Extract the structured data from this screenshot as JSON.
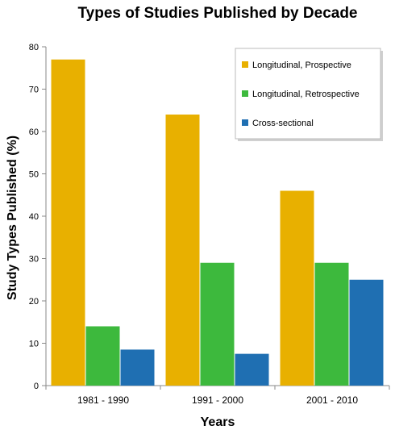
{
  "chart_data": {
    "type": "bar",
    "title": "Types of Studies Published by Decade",
    "xlabel": "Years",
    "ylabel": "Study Types Published (%)",
    "categories": [
      "1981 - 1990",
      "1991 - 2000",
      "2001 - 2010"
    ],
    "ylim": [
      0,
      80
    ],
    "yticks": [
      0,
      10,
      20,
      30,
      40,
      50,
      60,
      70,
      80
    ],
    "grid": false,
    "legend_position": "top-right",
    "series": [
      {
        "name": "Longitudinal, Prospective",
        "values": [
          77,
          64,
          46
        ],
        "color": "#E8B000"
      },
      {
        "name": "Longitudinal, Retrospective",
        "values": [
          14,
          29,
          29
        ],
        "color": "#3DB93D"
      },
      {
        "name": "Cross-sectional",
        "values": [
          8.5,
          7.5,
          25
        ],
        "color": "#1F6FB2"
      }
    ]
  }
}
